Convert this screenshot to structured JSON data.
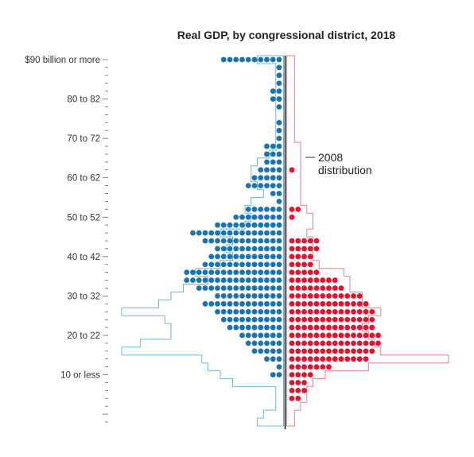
{
  "chart_data": {
    "type": "dot-histogram",
    "title": "Real GDP, by congressional district, 2018",
    "y_axis_labels": [
      "$90 billion or more",
      "80 to 82",
      "70 to 72",
      "60 to 62",
      "50 to 52",
      "40 to 42",
      "30 to 32",
      "20 to 22",
      "10 or less"
    ],
    "annotation": [
      "2008",
      "distribution"
    ],
    "colors": {
      "left_dots": "#1a73b0",
      "right_dots": "#e8112d",
      "left_outline": "#6ab8e0",
      "right_outline": "#ee7d87",
      "divider": "#111111",
      "axis": "#666666"
    },
    "series": [
      {
        "name": "left",
        "description_side": "left of divider",
        "rows_top_to_bottom": [
          10,
          1,
          1,
          1,
          2,
          2,
          1,
          0,
          1,
          1,
          1,
          3,
          3,
          3,
          4,
          5,
          6,
          2,
          1,
          6,
          8,
          11,
          15,
          13,
          11,
          12,
          13,
          16,
          16,
          14,
          11,
          13,
          11,
          10,
          9,
          7,
          6,
          5,
          3,
          1,
          2,
          0,
          0,
          0,
          0,
          0,
          0
        ]
      },
      {
        "name": "right",
        "description_side": "right of divider",
        "rows_top_to_bottom": [
          0,
          0,
          0,
          0,
          0,
          0,
          0,
          0,
          0,
          0,
          0,
          0,
          0,
          0,
          1,
          0,
          0,
          0,
          0,
          2,
          1,
          0,
          0,
          5,
          5,
          4,
          4,
          5,
          8,
          9,
          12,
          13,
          14,
          14,
          14,
          15,
          15,
          14,
          13,
          7,
          4,
          3,
          3,
          2,
          0,
          0,
          0
        ]
      },
      {
        "name": "2008 distribution (left outline)",
        "rows_top_to_bottom": [
          4,
          1,
          1,
          1,
          1,
          1,
          1,
          1,
          1,
          1,
          1,
          1,
          2,
          4,
          5,
          5,
          4,
          3,
          5,
          6,
          5,
          6,
          10,
          8,
          9,
          8,
          10,
          14,
          12,
          16,
          18,
          20,
          26,
          19,
          18,
          18,
          23,
          26,
          13,
          12,
          10,
          8,
          1,
          1,
          1,
          3,
          4
        ]
      },
      {
        "name": "2008 distribution (right outline)",
        "rows_top_to_bottom": [
          1,
          1,
          1,
          1,
          1,
          1,
          1,
          1,
          1,
          1,
          1,
          2,
          2,
          2,
          2,
          2,
          2,
          2,
          2,
          3,
          4,
          4,
          3,
          4,
          4,
          4,
          5,
          9,
          10,
          10,
          12,
          12,
          15,
          13,
          12,
          13,
          14,
          15,
          26,
          13,
          6,
          4,
          3,
          3,
          2,
          1,
          1
        ]
      }
    ]
  }
}
